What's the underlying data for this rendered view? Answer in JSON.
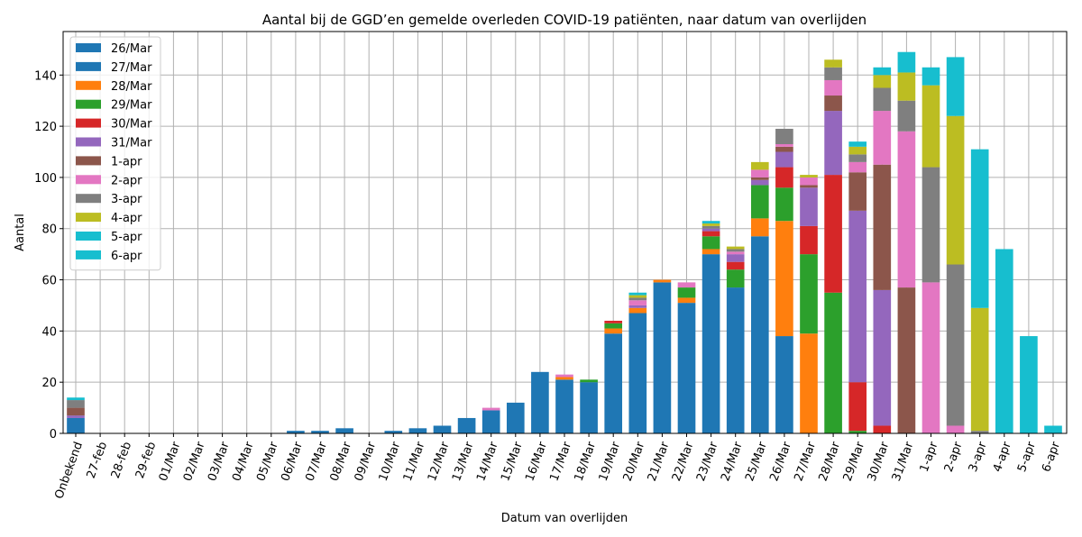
{
  "chart_data": {
    "type": "bar",
    "stacked": true,
    "title": "Aantal bij de GGD’en gemelde overleden COVID-19 patiënten, naar datum van overlijden",
    "xlabel": "Datum van overlijden",
    "ylabel": "Aantal",
    "ylim": [
      0,
      157
    ],
    "yticks": [
      0,
      20,
      40,
      60,
      80,
      100,
      120,
      140
    ],
    "grid": true,
    "legend_position": "top-left",
    "categories": [
      "Onbekend",
      "27-feb",
      "28-feb",
      "29-feb",
      "01/Mar",
      "02/Mar",
      "03/Mar",
      "04/Mar",
      "05/Mar",
      "06/Mar",
      "07/Mar",
      "08/Mar",
      "09/Mar",
      "10/Mar",
      "11/Mar",
      "12/Mar",
      "13/Mar",
      "14/Mar",
      "15/Mar",
      "16/Mar",
      "17/Mar",
      "18/Mar",
      "19/Mar",
      "20/Mar",
      "21/Mar",
      "22/Mar",
      "23/Mar",
      "24/Mar",
      "25/Mar",
      "26/Mar",
      "27/Mar",
      "28/Mar",
      "29/Mar",
      "30/Mar",
      "31/Mar",
      "1-apr",
      "2-apr",
      "3-apr",
      "4-apr",
      "5-apr",
      "6-apr"
    ],
    "series": [
      {
        "name": "26/Mar",
        "color": "#1f77b4",
        "values": [
          6,
          0,
          0,
          0,
          0,
          0,
          0,
          0,
          0,
          1,
          1,
          2,
          0,
          1,
          2,
          3,
          6,
          9,
          12,
          24,
          21,
          20,
          39,
          47,
          59,
          51,
          70,
          57,
          77,
          0,
          0,
          0,
          0,
          0,
          0,
          0,
          0,
          0,
          0,
          0,
          0
        ]
      },
      {
        "name": "27/Mar",
        "color": "#1f77b4",
        "values": [
          0,
          0,
          0,
          0,
          0,
          0,
          0,
          0,
          0,
          0,
          0,
          0,
          0,
          0,
          0,
          0,
          0,
          0,
          0,
          0,
          0,
          0,
          0,
          0,
          0,
          0,
          0,
          0,
          0,
          38,
          0,
          0,
          0,
          0,
          0,
          0,
          0,
          0,
          0,
          0,
          0
        ]
      },
      {
        "name": "28/Mar",
        "color": "#ff7f0e",
        "values": [
          0,
          0,
          0,
          0,
          0,
          0,
          0,
          0,
          0,
          0,
          0,
          0,
          0,
          0,
          0,
          0,
          0,
          0,
          0,
          0,
          1,
          0,
          2,
          2,
          1,
          2,
          2,
          0,
          7,
          45,
          39,
          0,
          0,
          0,
          0,
          0,
          0,
          0,
          0,
          0,
          0
        ]
      },
      {
        "name": "29/Mar",
        "color": "#2ca02c",
        "values": [
          0,
          0,
          0,
          0,
          0,
          0,
          0,
          0,
          0,
          0,
          0,
          0,
          0,
          0,
          0,
          0,
          0,
          0,
          0,
          0,
          0,
          1,
          2,
          0,
          0,
          4,
          5,
          7,
          13,
          13,
          31,
          55,
          1,
          0,
          0,
          0,
          0,
          0,
          0,
          0,
          0
        ]
      },
      {
        "name": "30/Mar",
        "color": "#d62728",
        "values": [
          0,
          0,
          0,
          0,
          0,
          0,
          0,
          0,
          0,
          0,
          0,
          0,
          0,
          0,
          0,
          0,
          0,
          0,
          0,
          0,
          0,
          0,
          1,
          0,
          0,
          0,
          2,
          3,
          0,
          8,
          11,
          46,
          19,
          3,
          0,
          0,
          0,
          0,
          0,
          0,
          0
        ]
      },
      {
        "name": "31/Mar",
        "color": "#9467bd",
        "values": [
          1,
          0,
          0,
          0,
          0,
          0,
          0,
          0,
          0,
          0,
          0,
          0,
          0,
          0,
          0,
          0,
          0,
          0,
          0,
          0,
          0,
          0,
          0,
          1,
          0,
          0,
          1,
          3,
          2,
          6,
          15,
          25,
          67,
          53,
          0,
          0,
          0,
          0,
          0,
          0,
          0
        ]
      },
      {
        "name": "1-apr",
        "color": "#8c564b",
        "values": [
          3,
          0,
          0,
          0,
          0,
          0,
          0,
          0,
          0,
          0,
          0,
          0,
          0,
          0,
          0,
          0,
          0,
          0,
          0,
          0,
          0,
          0,
          0,
          0,
          0,
          0,
          0,
          0,
          1,
          2,
          1,
          6,
          15,
          49,
          57,
          0,
          0,
          0,
          0,
          0,
          0
        ]
      },
      {
        "name": "2-apr",
        "color": "#e377c2",
        "values": [
          0,
          0,
          0,
          0,
          0,
          0,
          0,
          0,
          0,
          0,
          0,
          0,
          0,
          0,
          0,
          0,
          0,
          1,
          0,
          0,
          1,
          0,
          0,
          2,
          0,
          2,
          0,
          1,
          3,
          1,
          3,
          6,
          4,
          21,
          61,
          59,
          3,
          0,
          0,
          0,
          0
        ]
      },
      {
        "name": "3-apr",
        "color": "#7f7f7f",
        "values": [
          3,
          0,
          0,
          0,
          0,
          0,
          0,
          0,
          0,
          0,
          0,
          0,
          0,
          0,
          0,
          0,
          0,
          0,
          0,
          0,
          0,
          0,
          0,
          1,
          0,
          0,
          1,
          1,
          0,
          6,
          0,
          5,
          3,
          9,
          12,
          45,
          63,
          1,
          0,
          0,
          0
        ]
      },
      {
        "name": "4-apr",
        "color": "#bcbd22",
        "values": [
          0,
          0,
          0,
          0,
          0,
          0,
          0,
          0,
          0,
          0,
          0,
          0,
          0,
          0,
          0,
          0,
          0,
          0,
          0,
          0,
          0,
          0,
          0,
          1,
          0,
          0,
          1,
          1,
          3,
          0,
          1,
          3,
          3,
          5,
          11,
          32,
          58,
          48,
          0,
          0,
          0
        ]
      },
      {
        "name": "5-apr",
        "color": "#17becf",
        "values": [
          1,
          0,
          0,
          0,
          0,
          0,
          0,
          0,
          0,
          0,
          0,
          0,
          0,
          0,
          0,
          0,
          0,
          0,
          0,
          0,
          0,
          0,
          0,
          1,
          0,
          0,
          1,
          0,
          0,
          0,
          0,
          0,
          2,
          3,
          8,
          7,
          23,
          62,
          72,
          38,
          3
        ]
      },
      {
        "name": "6-apr",
        "color": "#17becf",
        "values": [
          0,
          0,
          0,
          0,
          0,
          0,
          0,
          0,
          0,
          0,
          0,
          0,
          0,
          0,
          0,
          0,
          0,
          0,
          0,
          0,
          0,
          0,
          0,
          0,
          0,
          0,
          0,
          0,
          0,
          0,
          0,
          0,
          0,
          0,
          0,
          0,
          0,
          0,
          0,
          0,
          0
        ]
      }
    ]
  }
}
